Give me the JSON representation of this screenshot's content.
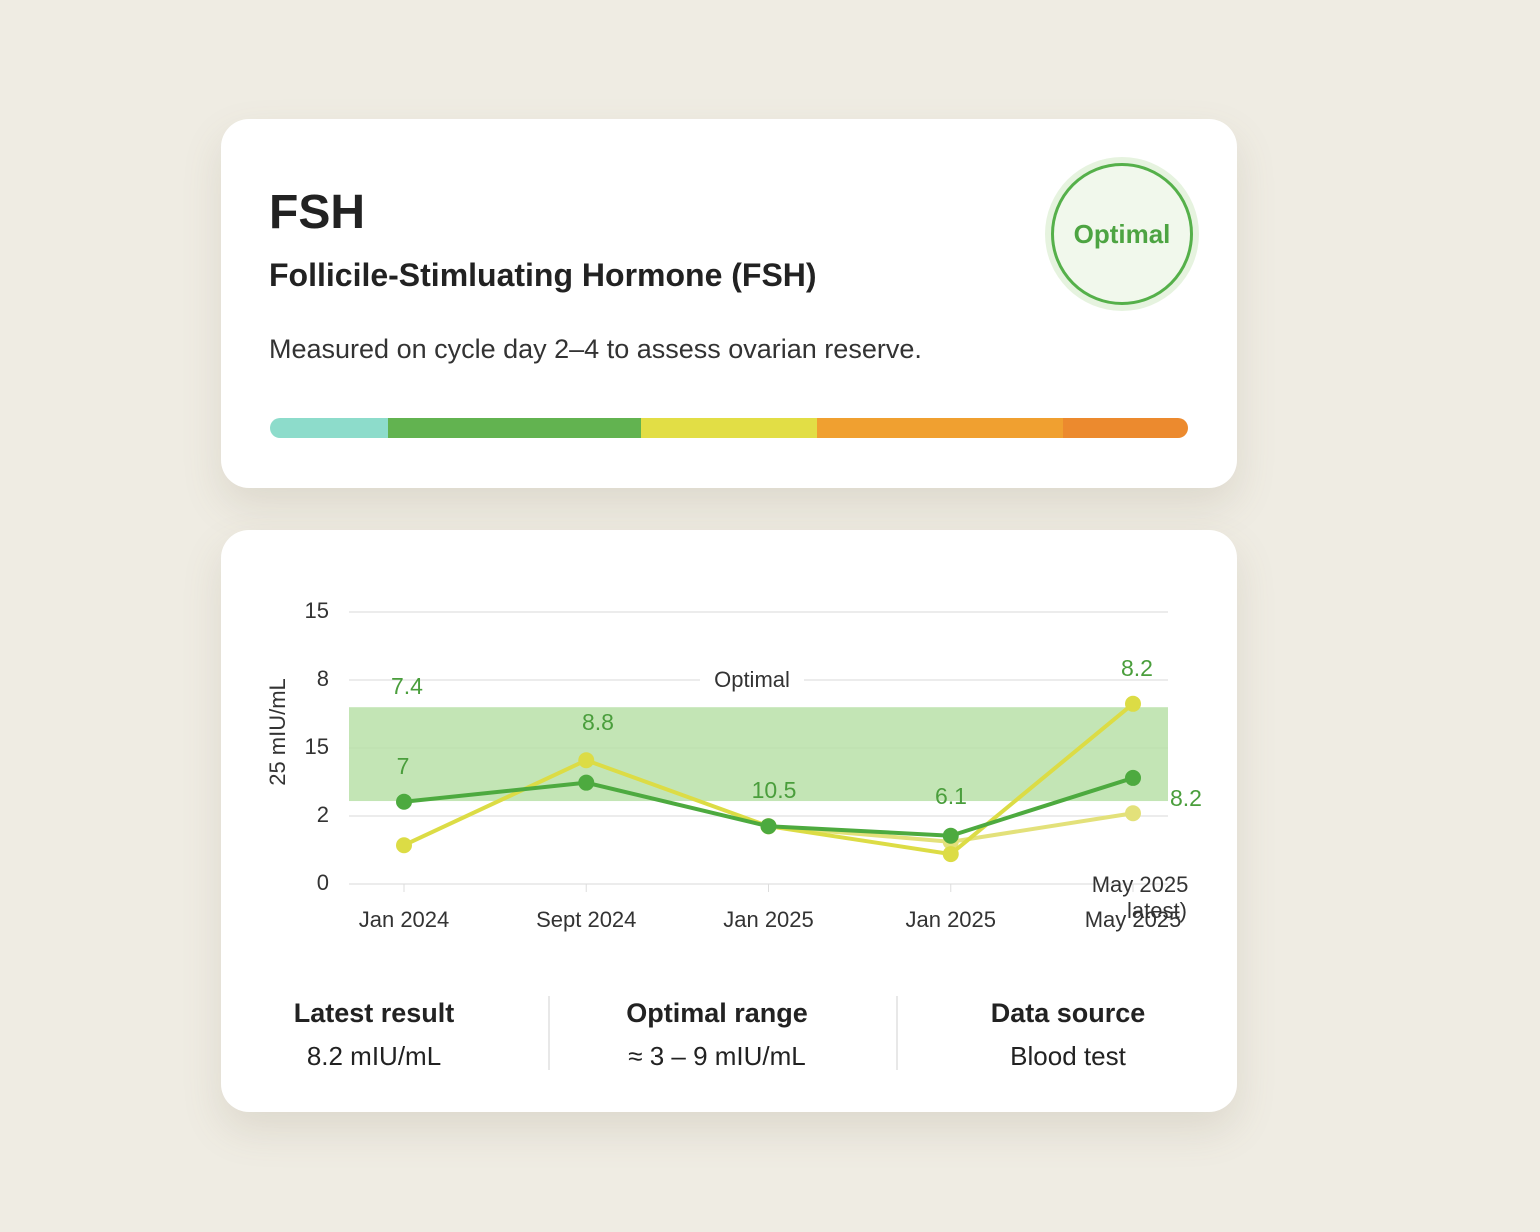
{
  "header": {
    "title": "FSH",
    "subtitle": "Follicile-Stimluating Hormone (FSH)",
    "description": "Measured on cycle day 2–4 to assess ovarian reserve.",
    "badge": "Optimal"
  },
  "range_bar": {
    "colors": [
      "#8ddccb",
      "#62b350",
      "#e2de45",
      "#f0a030",
      "#ec8a2e"
    ]
  },
  "chart_data": {
    "type": "line",
    "y_label": "25 mIU/mL",
    "categories": [
      "Jan 2024",
      "Sept 2024",
      "Jan 2025",
      "Jan 2025",
      "May 2025"
    ],
    "ylim": [
      0,
      4
    ],
    "yticks": [
      {
        "value": 0,
        "label": "0"
      },
      {
        "value": 1,
        "label": "2"
      },
      {
        "value": 2,
        "label": "15"
      },
      {
        "value": 3,
        "label": "8"
      },
      {
        "value": 4,
        "label": "15"
      }
    ],
    "grid": true,
    "optimal_band": {
      "range": [
        1.22,
        2.6
      ],
      "label": "Optimal",
      "color": "#b9e0a8"
    },
    "series": [
      {
        "color": "#4daa3f",
        "values": [
          1.21,
          1.49,
          0.85,
          0.71,
          1.56
        ]
      },
      {
        "color": "#dcdc45",
        "values": [
          0.57,
          1.82,
          0.85,
          0.44,
          2.65
        ]
      },
      {
        "color": "#e3e17a",
        "values": [
          null,
          null,
          0.85,
          0.62,
          1.04
        ]
      }
    ],
    "annotations": [
      "7.4",
      "7",
      "8.8",
      "10.5",
      "6.1",
      "8.2",
      "8.2",
      "May 2025",
      "latest)"
    ]
  },
  "stats": [
    {
      "label": "Latest result",
      "value": "8.2 mIU/mL"
    },
    {
      "label": "Optimal range",
      "value": "≈ 3 – 9 mIU/mL"
    },
    {
      "label": "Data source",
      "value": "Blood test"
    }
  ]
}
